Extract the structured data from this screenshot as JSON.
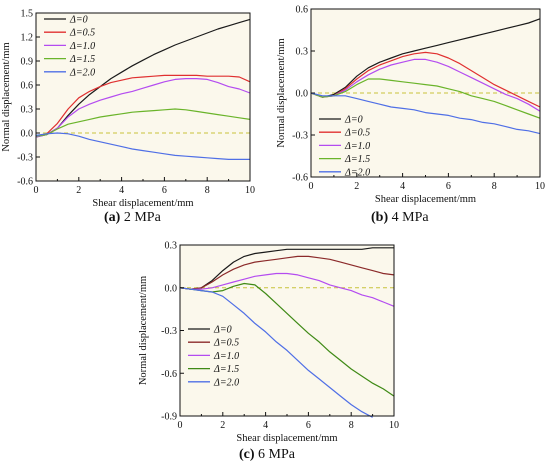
{
  "colors": {
    "plot_bg": "#fbf8ec",
    "zero_line": "#c8c23a",
    "axis": "#111111"
  },
  "chart_data": [
    {
      "type": "line",
      "caption_tag": "(a)",
      "caption_text": " 2 MPa",
      "xlabel": "Shear displacement/mm",
      "ylabel": "Normal displacement/mm",
      "xlim": [
        0,
        10
      ],
      "ylim": [
        -0.6,
        1.5
      ],
      "xticks": [
        0,
        2,
        4,
        6,
        8,
        10
      ],
      "yticks": [
        -0.6,
        -0.3,
        0.0,
        0.3,
        0.6,
        0.9,
        1.2,
        1.5
      ],
      "xtick_labels": [
        "0",
        "2",
        "4",
        "6",
        "8",
        "10"
      ],
      "ytick_labels": [
        "-0.6",
        "-0.3",
        "0.0",
        "0.3",
        "0.6",
        "0.9",
        "1.2",
        "1.5"
      ],
      "legend_position": "top-left",
      "grid": false,
      "series": [
        {
          "name": "Δ=0",
          "color": "#1a1a1a",
          "x": [
            0,
            0.5,
            1,
            1.5,
            2,
            2.5,
            3,
            3.5,
            4,
            4.5,
            5,
            5.5,
            6,
            6.5,
            7,
            7.5,
            8,
            8.5,
            9,
            9.5,
            10
          ],
          "y": [
            -0.05,
            -0.02,
            0.06,
            0.22,
            0.36,
            0.48,
            0.58,
            0.68,
            0.76,
            0.84,
            0.91,
            0.98,
            1.04,
            1.1,
            1.15,
            1.2,
            1.25,
            1.3,
            1.34,
            1.38,
            1.42
          ]
        },
        {
          "name": "Δ=0.5",
          "color": "#e03030",
          "x": [
            0,
            0.5,
            1,
            1.5,
            2,
            2.5,
            3,
            3.5,
            4,
            4.5,
            5,
            5.5,
            6,
            6.5,
            7,
            7.5,
            8,
            8.5,
            9,
            9.5,
            10
          ],
          "y": [
            -0.04,
            -0.01,
            0.12,
            0.3,
            0.44,
            0.52,
            0.58,
            0.63,
            0.66,
            0.69,
            0.7,
            0.71,
            0.72,
            0.72,
            0.72,
            0.72,
            0.71,
            0.71,
            0.71,
            0.7,
            0.64
          ]
        },
        {
          "name": "Δ=1.0",
          "color": "#b44cf0",
          "x": [
            0,
            0.5,
            1,
            1.5,
            2,
            2.5,
            3,
            3.5,
            4,
            4.5,
            5,
            5.5,
            6,
            6.5,
            7,
            7.5,
            8,
            8.5,
            9,
            9.5,
            10
          ],
          "y": [
            -0.05,
            -0.02,
            0.06,
            0.2,
            0.3,
            0.36,
            0.41,
            0.45,
            0.49,
            0.52,
            0.56,
            0.6,
            0.64,
            0.67,
            0.68,
            0.68,
            0.67,
            0.63,
            0.58,
            0.55,
            0.5
          ]
        },
        {
          "name": "Δ=1.5",
          "color": "#6ab42a",
          "x": [
            0,
            0.5,
            1,
            1.5,
            2,
            2.5,
            3,
            3.5,
            4,
            4.5,
            5,
            5.5,
            6,
            6.5,
            7,
            7.5,
            8,
            8.5,
            9,
            9.5,
            10
          ],
          "y": [
            -0.04,
            -0.02,
            0.05,
            0.11,
            0.14,
            0.17,
            0.2,
            0.22,
            0.24,
            0.26,
            0.27,
            0.28,
            0.29,
            0.3,
            0.29,
            0.27,
            0.25,
            0.23,
            0.21,
            0.19,
            0.17
          ]
        },
        {
          "name": "Δ=2.0",
          "color": "#4f6fe6",
          "x": [
            0,
            0.5,
            1,
            1.5,
            2,
            2.5,
            3,
            3.5,
            4,
            4.5,
            5,
            5.5,
            6,
            6.5,
            7,
            7.5,
            8,
            8.5,
            9,
            9.5,
            10
          ],
          "y": [
            -0.03,
            -0.01,
            0.0,
            -0.01,
            -0.04,
            -0.08,
            -0.11,
            -0.14,
            -0.17,
            -0.2,
            -0.22,
            -0.24,
            -0.26,
            -0.28,
            -0.29,
            -0.3,
            -0.31,
            -0.32,
            -0.33,
            -0.33,
            -0.33
          ]
        }
      ]
    },
    {
      "type": "line",
      "caption_tag": "(b)",
      "caption_text": " 4 MPa",
      "xlabel": "Shear displacement/mm",
      "ylabel": "Normal displacement/mm",
      "xlim": [
        0,
        10
      ],
      "ylim": [
        -0.6,
        0.6
      ],
      "xticks": [
        0,
        2,
        4,
        6,
        8,
        10
      ],
      "yticks": [
        -0.6,
        -0.3,
        0.0,
        0.3,
        0.6
      ],
      "xtick_labels": [
        "0",
        "2",
        "4",
        "6",
        "8",
        "10"
      ],
      "ytick_labels": [
        "-0.6",
        "-0.3",
        "0.0",
        "0.3",
        "0.6"
      ],
      "legend_position": "bottom-left",
      "grid": false,
      "series": [
        {
          "name": "Δ=0",
          "color": "#1a1a1a",
          "x": [
            0,
            0.5,
            1,
            1.5,
            2,
            2.5,
            3,
            3.5,
            4,
            4.5,
            5,
            5.5,
            6,
            6.5,
            7,
            7.5,
            8,
            8.5,
            9,
            9.5,
            10
          ],
          "y": [
            0.0,
            -0.03,
            -0.01,
            0.04,
            0.12,
            0.18,
            0.22,
            0.25,
            0.28,
            0.3,
            0.32,
            0.34,
            0.36,
            0.38,
            0.4,
            0.42,
            0.44,
            0.46,
            0.48,
            0.5,
            0.53
          ]
        },
        {
          "name": "Δ=0.5",
          "color": "#e03030",
          "x": [
            0,
            0.5,
            1,
            1.5,
            2,
            2.5,
            3,
            3.5,
            4,
            4.5,
            5,
            5.5,
            6,
            6.5,
            7,
            7.5,
            8,
            8.5,
            9,
            9.5,
            10
          ],
          "y": [
            0.0,
            -0.03,
            -0.02,
            0.03,
            0.1,
            0.16,
            0.2,
            0.23,
            0.26,
            0.28,
            0.29,
            0.28,
            0.25,
            0.21,
            0.16,
            0.11,
            0.06,
            0.02,
            -0.02,
            -0.06,
            -0.1
          ]
        },
        {
          "name": "Δ=1.0",
          "color": "#b44cf0",
          "x": [
            0,
            0.5,
            1,
            1.5,
            2,
            2.5,
            3,
            3.5,
            4,
            4.5,
            5,
            5.5,
            6,
            6.5,
            7,
            7.5,
            8,
            8.5,
            9,
            9.5,
            10
          ],
          "y": [
            0.0,
            -0.03,
            -0.02,
            0.02,
            0.08,
            0.13,
            0.17,
            0.2,
            0.22,
            0.24,
            0.24,
            0.22,
            0.19,
            0.15,
            0.11,
            0.07,
            0.03,
            -0.01,
            -0.04,
            -0.08,
            -0.13
          ]
        },
        {
          "name": "Δ=1.5",
          "color": "#6ab42a",
          "x": [
            0,
            0.5,
            1,
            1.5,
            2,
            2.5,
            3,
            3.5,
            4,
            4.5,
            5,
            5.5,
            6,
            6.5,
            7,
            7.5,
            8,
            8.5,
            9,
            9.5,
            10
          ],
          "y": [
            0.0,
            -0.03,
            -0.02,
            0.01,
            0.06,
            0.1,
            0.1,
            0.09,
            0.08,
            0.07,
            0.06,
            0.05,
            0.03,
            0.01,
            -0.02,
            -0.04,
            -0.06,
            -0.09,
            -0.12,
            -0.15,
            -0.18
          ]
        },
        {
          "name": "Δ=2.0",
          "color": "#4f6fe6",
          "x": [
            0,
            0.5,
            1,
            1.5,
            2,
            2.5,
            3,
            3.5,
            4,
            4.5,
            5,
            5.5,
            6,
            6.5,
            7,
            7.5,
            8,
            8.5,
            9,
            9.5,
            10
          ],
          "y": [
            0.0,
            -0.02,
            -0.02,
            -0.02,
            -0.04,
            -0.06,
            -0.08,
            -0.1,
            -0.11,
            -0.12,
            -0.14,
            -0.15,
            -0.16,
            -0.18,
            -0.19,
            -0.21,
            -0.22,
            -0.24,
            -0.26,
            -0.27,
            -0.29
          ]
        }
      ]
    },
    {
      "type": "line",
      "caption_tag": "(c)",
      "caption_text": " 6 MPa",
      "xlabel": "Shear displacement/mm",
      "ylabel": "Normal displacement/mm",
      "xlim": [
        0,
        10
      ],
      "ylim": [
        -0.9,
        0.3
      ],
      "xticks": [
        0,
        2,
        4,
        6,
        8,
        10
      ],
      "yticks": [
        -0.9,
        -0.6,
        -0.3,
        0.0,
        0.3
      ],
      "xtick_labels": [
        "0",
        "2",
        "4",
        "6",
        "8",
        "10"
      ],
      "ytick_labels": [
        "-0.9",
        "-0.6",
        "-0.3",
        "0.0",
        "0.3"
      ],
      "legend_position": "bottom-left",
      "grid": false,
      "series": [
        {
          "name": "Δ=0",
          "color": "#1a1a1a",
          "x": [
            0,
            0.5,
            1,
            1.5,
            2,
            2.5,
            3,
            3.5,
            4,
            4.5,
            5,
            5.5,
            6,
            6.5,
            7,
            7.5,
            8,
            8.5,
            9,
            9.5,
            10
          ],
          "y": [
            0.0,
            -0.01,
            0.0,
            0.05,
            0.12,
            0.18,
            0.22,
            0.24,
            0.25,
            0.26,
            0.27,
            0.27,
            0.27,
            0.27,
            0.27,
            0.27,
            0.27,
            0.27,
            0.28,
            0.28,
            0.28
          ]
        },
        {
          "name": "Δ=0.5",
          "color": "#8b2a2a",
          "x": [
            0,
            0.5,
            1,
            1.5,
            2,
            2.5,
            3,
            3.5,
            4,
            4.5,
            5,
            5.5,
            6,
            6.5,
            7,
            7.5,
            8,
            8.5,
            9,
            9.5,
            10
          ],
          "y": [
            0.0,
            -0.01,
            0.0,
            0.04,
            0.09,
            0.13,
            0.16,
            0.18,
            0.19,
            0.2,
            0.21,
            0.22,
            0.22,
            0.21,
            0.2,
            0.18,
            0.16,
            0.14,
            0.12,
            0.1,
            0.09
          ]
        },
        {
          "name": "Δ=1.0",
          "color": "#b44cf0",
          "x": [
            0,
            0.5,
            1,
            1.5,
            2,
            2.5,
            3,
            3.5,
            4,
            4.5,
            5,
            5.5,
            6,
            6.5,
            7,
            7.5,
            8,
            8.5,
            9,
            9.5,
            10
          ],
          "y": [
            0.0,
            -0.01,
            -0.01,
            0.0,
            0.02,
            0.04,
            0.06,
            0.08,
            0.09,
            0.1,
            0.1,
            0.09,
            0.07,
            0.05,
            0.02,
            0.0,
            -0.02,
            -0.05,
            -0.07,
            -0.1,
            -0.13
          ]
        },
        {
          "name": "Δ=1.5",
          "color": "#3f8a16",
          "x": [
            0,
            0.5,
            1,
            1.5,
            2,
            2.5,
            3,
            3.5,
            4,
            4.5,
            5,
            5.5,
            6,
            6.5,
            7,
            7.5,
            8,
            8.5,
            9,
            9.5,
            10
          ],
          "y": [
            0.0,
            -0.01,
            -0.02,
            -0.03,
            -0.02,
            0.01,
            0.03,
            0.02,
            -0.04,
            -0.11,
            -0.18,
            -0.25,
            -0.32,
            -0.38,
            -0.45,
            -0.51,
            -0.57,
            -0.62,
            -0.67,
            -0.71,
            -0.76
          ]
        },
        {
          "name": "Δ=2.0",
          "color": "#4f6fe6",
          "x": [
            0,
            0.5,
            1,
            1.5,
            2,
            2.5,
            3,
            3.5,
            4,
            4.5,
            5,
            5.5,
            6,
            6.5,
            7,
            7.5,
            8,
            8.5,
            9
          ],
          "y": [
            0.0,
            -0.01,
            -0.02,
            -0.03,
            -0.06,
            -0.12,
            -0.18,
            -0.25,
            -0.31,
            -0.38,
            -0.44,
            -0.51,
            -0.58,
            -0.64,
            -0.7,
            -0.76,
            -0.82,
            -0.87,
            -0.91
          ]
        }
      ]
    }
  ]
}
